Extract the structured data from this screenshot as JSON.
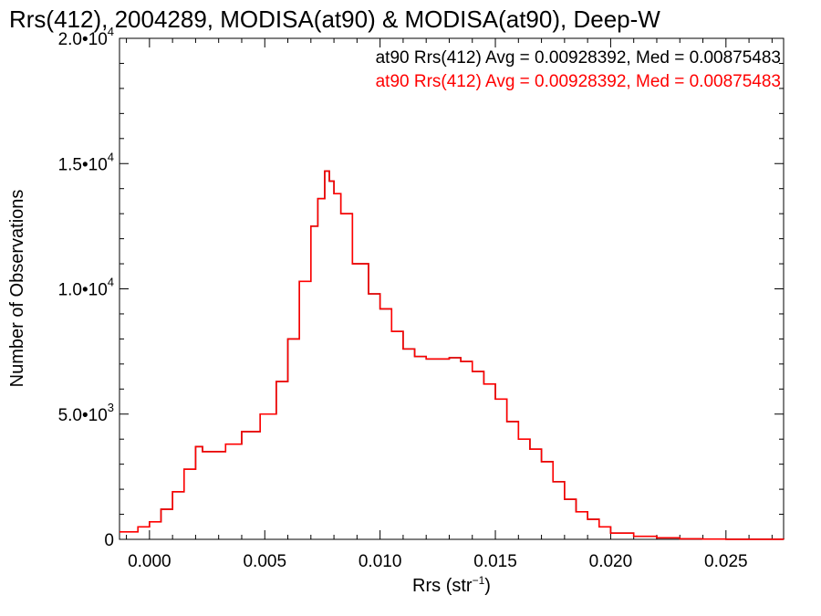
{
  "chart_data": {
    "type": "line",
    "title": "Rrs(412), 2004289, MODISA(at90) & MODISA(at90), Deep-W",
    "xlabel": "Rrs (str",
    "xlabel_sup": "−1",
    "xlabel_end": ")",
    "ylabel": "Number of Observations",
    "xlim": [
      -0.0013,
      0.0275
    ],
    "ylim": [
      0,
      20000
    ],
    "x_ticks": [
      0.0,
      0.005,
      0.01,
      0.015,
      0.02,
      0.025
    ],
    "x_tick_labels": [
      "0.000",
      "0.005",
      "0.010",
      "0.015",
      "0.020",
      "0.025"
    ],
    "y_ticks": [
      0,
      5000,
      10000,
      15000,
      20000
    ],
    "y_tick_labels": [
      {
        "base": "0",
        "exp": ""
      },
      {
        "base": "5.0•10",
        "exp": "3"
      },
      {
        "base": "1.0•10",
        "exp": "4"
      },
      {
        "base": "1.5•10",
        "exp": "4"
      },
      {
        "base": "2.0•10",
        "exp": "4"
      }
    ],
    "legend_position": "top-right",
    "series": [
      {
        "name": "at90 Rrs(412) Avg = 0.00928392, Med = 0.00875483",
        "color": "#000000",
        "points": [
          [
            -0.0013,
            300
          ],
          [
            -0.0005,
            500
          ],
          [
            0.0,
            700
          ],
          [
            0.0005,
            1200
          ],
          [
            0.001,
            1900
          ],
          [
            0.0015,
            2800
          ],
          [
            0.002,
            3700
          ],
          [
            0.0023,
            3500
          ],
          [
            0.0028,
            3500
          ],
          [
            0.0033,
            3800
          ],
          [
            0.004,
            4300
          ],
          [
            0.0048,
            5000
          ],
          [
            0.0055,
            6300
          ],
          [
            0.006,
            8000
          ],
          [
            0.0065,
            10300
          ],
          [
            0.007,
            12500
          ],
          [
            0.0073,
            13600
          ],
          [
            0.0076,
            14700
          ],
          [
            0.0078,
            14300
          ],
          [
            0.008,
            13800
          ],
          [
            0.0083,
            13000
          ],
          [
            0.0088,
            11000
          ],
          [
            0.0095,
            9800
          ],
          [
            0.01,
            9200
          ],
          [
            0.0105,
            8300
          ],
          [
            0.011,
            7600
          ],
          [
            0.0115,
            7300
          ],
          [
            0.012,
            7200
          ],
          [
            0.0125,
            7200
          ],
          [
            0.013,
            7250
          ],
          [
            0.0135,
            7100
          ],
          [
            0.014,
            6700
          ],
          [
            0.0145,
            6200
          ],
          [
            0.015,
            5600
          ],
          [
            0.0155,
            4700
          ],
          [
            0.016,
            4000
          ],
          [
            0.0165,
            3600
          ],
          [
            0.017,
            3100
          ],
          [
            0.0175,
            2300
          ],
          [
            0.018,
            1600
          ],
          [
            0.0185,
            1100
          ],
          [
            0.019,
            800
          ],
          [
            0.0195,
            500
          ],
          [
            0.02,
            250
          ],
          [
            0.021,
            120
          ],
          [
            0.022,
            60
          ],
          [
            0.023,
            20
          ],
          [
            0.024,
            10
          ],
          [
            0.025,
            3
          ],
          [
            0.0275,
            0
          ]
        ]
      },
      {
        "name": "at90 Rrs(412) Avg = 0.00928392, Med = 0.00875483",
        "color": "#ff0000",
        "points": [
          [
            -0.0013,
            300
          ],
          [
            -0.0005,
            500
          ],
          [
            0.0,
            700
          ],
          [
            0.0005,
            1200
          ],
          [
            0.001,
            1900
          ],
          [
            0.0015,
            2800
          ],
          [
            0.002,
            3700
          ],
          [
            0.0023,
            3500
          ],
          [
            0.0028,
            3500
          ],
          [
            0.0033,
            3800
          ],
          [
            0.004,
            4300
          ],
          [
            0.0048,
            5000
          ],
          [
            0.0055,
            6300
          ],
          [
            0.006,
            8000
          ],
          [
            0.0065,
            10300
          ],
          [
            0.007,
            12500
          ],
          [
            0.0073,
            13600
          ],
          [
            0.0076,
            14700
          ],
          [
            0.0078,
            14300
          ],
          [
            0.008,
            13800
          ],
          [
            0.0083,
            13000
          ],
          [
            0.0088,
            11000
          ],
          [
            0.0095,
            9800
          ],
          [
            0.01,
            9200
          ],
          [
            0.0105,
            8300
          ],
          [
            0.011,
            7600
          ],
          [
            0.0115,
            7300
          ],
          [
            0.012,
            7200
          ],
          [
            0.0125,
            7200
          ],
          [
            0.013,
            7250
          ],
          [
            0.0135,
            7100
          ],
          [
            0.014,
            6700
          ],
          [
            0.0145,
            6200
          ],
          [
            0.015,
            5600
          ],
          [
            0.0155,
            4700
          ],
          [
            0.016,
            4000
          ],
          [
            0.0165,
            3600
          ],
          [
            0.017,
            3100
          ],
          [
            0.0175,
            2300
          ],
          [
            0.018,
            1600
          ],
          [
            0.0185,
            1100
          ],
          [
            0.019,
            800
          ],
          [
            0.0195,
            500
          ],
          [
            0.02,
            250
          ],
          [
            0.021,
            120
          ],
          [
            0.022,
            60
          ],
          [
            0.023,
            20
          ],
          [
            0.024,
            10
          ],
          [
            0.025,
            3
          ],
          [
            0.0275,
            0
          ]
        ]
      }
    ]
  }
}
